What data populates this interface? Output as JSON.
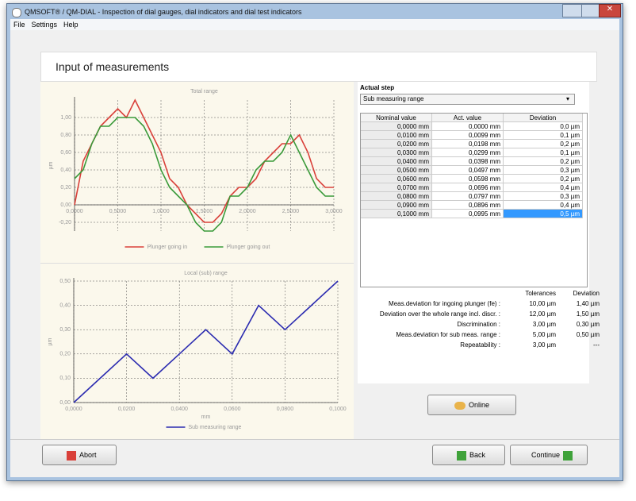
{
  "window": {
    "title": "QMSOFT® / QM-DIAL - Inspection of dial gauges, dial indicators and dial test indicators",
    "menu": [
      "File",
      "Settings",
      "Help"
    ]
  },
  "header": {
    "title": "Input of measurements"
  },
  "chart_data": [
    {
      "type": "line",
      "title": "Total range",
      "y_label": "µm",
      "x": [
        0,
        0.1,
        0.2,
        0.3,
        0.4,
        0.5,
        0.6,
        0.7,
        0.8,
        0.9,
        1.0,
        1.1,
        1.2,
        1.3,
        1.4,
        1.5,
        1.6,
        1.7,
        1.8,
        1.9,
        2.0,
        2.1,
        2.2,
        2.3,
        2.4,
        2.5,
        2.6,
        2.7,
        2.8,
        2.9,
        3.0
      ],
      "series": [
        {
          "name": "Plunger going in",
          "color": "#d9403a",
          "values": [
            0.0,
            0.5,
            0.7,
            0.9,
            1.0,
            1.1,
            1.0,
            1.2,
            1.0,
            0.8,
            0.6,
            0.3,
            0.2,
            0.0,
            -0.1,
            -0.2,
            -0.2,
            -0.1,
            0.1,
            0.2,
            0.2,
            0.3,
            0.5,
            0.6,
            0.7,
            0.7,
            0.8,
            0.6,
            0.3,
            0.2,
            0.2
          ]
        },
        {
          "name": "Plunger going out",
          "color": "#3a9a3a",
          "values": [
            0.3,
            0.4,
            0.7,
            0.9,
            0.9,
            1.0,
            1.0,
            1.0,
            0.9,
            0.7,
            0.4,
            0.2,
            0.1,
            0.0,
            -0.2,
            -0.3,
            -0.3,
            -0.2,
            0.1,
            0.1,
            0.2,
            0.4,
            0.5,
            0.5,
            0.6,
            0.8,
            0.6,
            0.4,
            0.2,
            0.1,
            0.1
          ]
        }
      ],
      "xlim": [
        0,
        3
      ],
      "ylim": [
        -0.3,
        1.2
      ],
      "xticks": [
        {
          "value": 0,
          "label": "0,0000"
        },
        {
          "value": 0.5,
          "label": "0,5000"
        },
        {
          "value": 1,
          "label": "1,0000"
        },
        {
          "value": 1.5,
          "label": "1,5000"
        },
        {
          "value": 2,
          "label": "2,0000"
        },
        {
          "value": 2.5,
          "label": "2,5000"
        },
        {
          "value": 3,
          "label": "3,0000"
        }
      ],
      "yticks": [
        {
          "value": -0.2,
          "label": "-0,20"
        },
        {
          "value": 0,
          "label": "0,00"
        },
        {
          "value": 0.2,
          "label": "0,20"
        },
        {
          "value": 0.4,
          "label": "0,40"
        },
        {
          "value": 0.6,
          "label": "0,60"
        },
        {
          "value": 0.8,
          "label": "0,80"
        },
        {
          "value": 1.0,
          "label": "1,00"
        }
      ],
      "grid": true
    },
    {
      "type": "line",
      "title": "Local (sub) range",
      "y_label": "µm",
      "x_label": "mm",
      "x": [
        0,
        0.01,
        0.02,
        0.03,
        0.04,
        0.05,
        0.06,
        0.07,
        0.08,
        0.09,
        0.1
      ],
      "series": [
        {
          "name": "Sub measuring range",
          "color": "#2b2bb0",
          "values": [
            0.0,
            0.1,
            0.2,
            0.1,
            0.2,
            0.3,
            0.2,
            0.4,
            0.3,
            0.4,
            0.5
          ]
        }
      ],
      "xlim": [
        0,
        0.1
      ],
      "ylim": [
        0,
        0.5
      ],
      "xticks": [
        {
          "value": 0,
          "label": "0,0000"
        },
        {
          "value": 0.02,
          "label": "0,0200"
        },
        {
          "value": 0.04,
          "label": "0,0400"
        },
        {
          "value": 0.06,
          "label": "0,0600"
        },
        {
          "value": 0.08,
          "label": "0,0800"
        },
        {
          "value": 0.1,
          "label": "0,1000"
        }
      ],
      "yticks": [
        {
          "value": 0,
          "label": "0,00"
        },
        {
          "value": 0.1,
          "label": "0,10"
        },
        {
          "value": 0.2,
          "label": "0,20"
        },
        {
          "value": 0.3,
          "label": "0,30"
        },
        {
          "value": 0.4,
          "label": "0,40"
        },
        {
          "value": 0.5,
          "label": "0,50"
        }
      ],
      "grid": true
    }
  ],
  "step": {
    "label": "Actual step",
    "selected": "Sub measuring range"
  },
  "table": {
    "headers": [
      "Nominal value",
      "Act. value",
      "Deviation"
    ],
    "rows": [
      [
        "0,0000 mm",
        "0,0000 mm",
        "0,0 µm"
      ],
      [
        "0,0100 mm",
        "0,0099 mm",
        "0,1 µm"
      ],
      [
        "0,0200 mm",
        "0,0198 mm",
        "0,2 µm"
      ],
      [
        "0,0300 mm",
        "0,0299 mm",
        "0,1 µm"
      ],
      [
        "0,0400 mm",
        "0,0398 mm",
        "0,2 µm"
      ],
      [
        "0,0500 mm",
        "0,0497 mm",
        "0,3 µm"
      ],
      [
        "0,0600 mm",
        "0,0598 mm",
        "0,2 µm"
      ],
      [
        "0,0700 mm",
        "0,0696 mm",
        "0,4 µm"
      ],
      [
        "0,0800 mm",
        "0,0797 mm",
        "0,3 µm"
      ],
      [
        "0,0900 mm",
        "0,0896 mm",
        "0,4 µm"
      ],
      [
        "0,1000 mm",
        "0,0995 mm",
        "0,5 µm"
      ]
    ]
  },
  "tolerances": {
    "headers": [
      "Tolerances",
      "Deviation"
    ],
    "rows": [
      [
        "Meas.deviation for ingoing plunger (fe) :",
        "10,00 µm",
        "1,40 µm"
      ],
      [
        "Deviation over the whole range incl. discr. :",
        "12,00 µm",
        "1,50 µm"
      ],
      [
        "Discrimination :",
        "3,00 µm",
        "0,30 µm"
      ],
      [
        "Meas.deviation for sub meas. range :",
        "5,00 µm",
        "0,50 µm"
      ],
      [
        "Repeatability :",
        "3,00 µm",
        "---"
      ]
    ]
  },
  "buttons": {
    "abort": "Abort",
    "online": "Online",
    "back": "Back",
    "continue": "Continue"
  }
}
